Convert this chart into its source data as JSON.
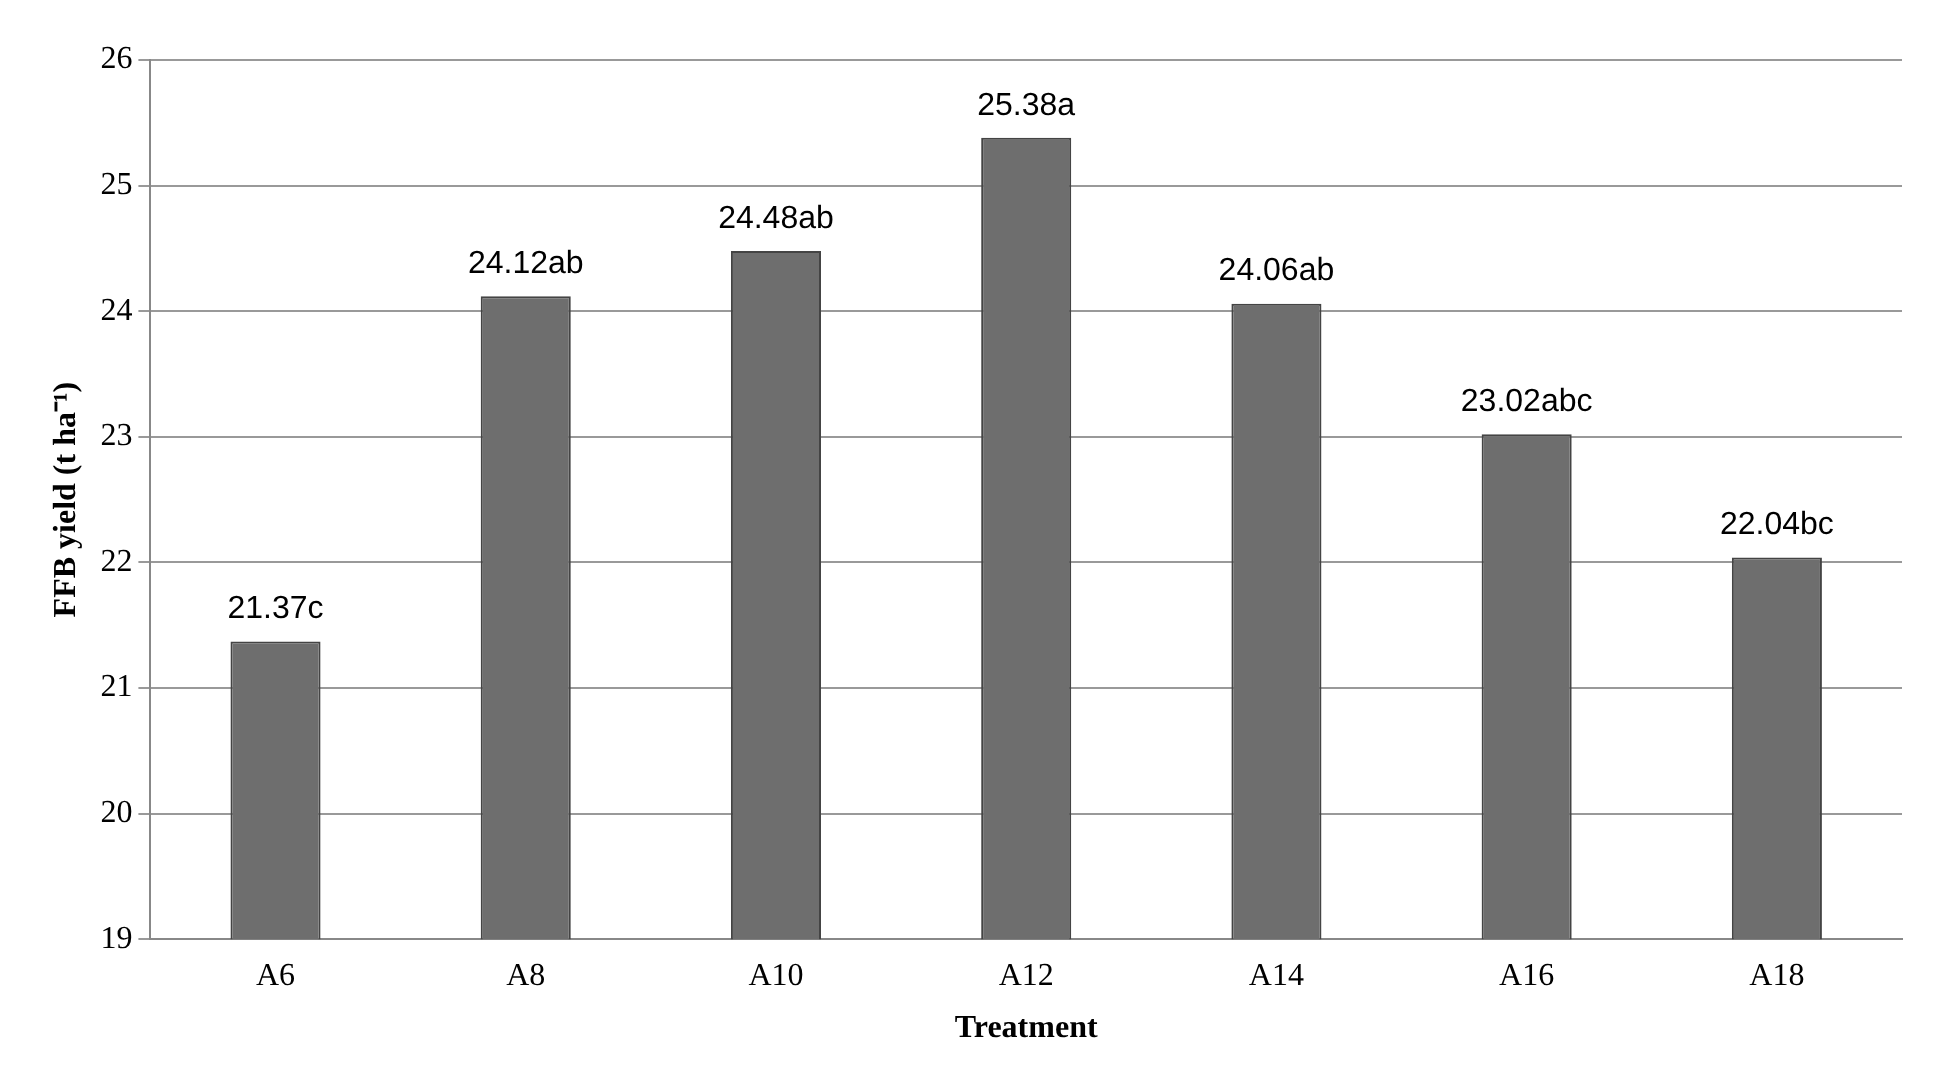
{
  "chart_data": {
    "type": "bar",
    "xlabel": "Treatment",
    "ylabel": "FFB yield (t ha⁻¹)",
    "categories": [
      "A6",
      "A8",
      "A10",
      "A12",
      "A14",
      "A16",
      "A18"
    ],
    "values": [
      21.37,
      24.12,
      24.48,
      25.38,
      24.06,
      23.02,
      22.04
    ],
    "value_labels": [
      "21.37c",
      "24.12ab",
      "24.48ab",
      "25.38a",
      "24.06ab",
      "23.02abc",
      "22.04bc"
    ],
    "color": "#6e6e6e",
    "ylim": [
      19,
      26
    ],
    "yticks": [
      19,
      20,
      21,
      22,
      23,
      24,
      25,
      26
    ],
    "grid": "y",
    "legend": false
  }
}
